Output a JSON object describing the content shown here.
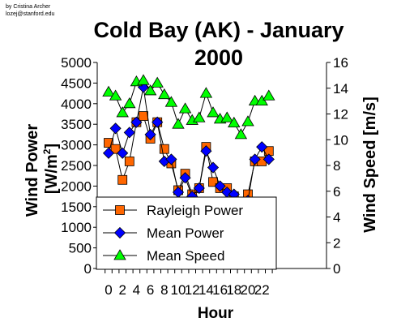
{
  "credit": {
    "line1": "by Cristina Archer",
    "line2": "lozej@stanford.edu"
  },
  "chart_data": {
    "type": "line",
    "title_line1": "Cold Bay (AK) - January",
    "title_line2": "2000",
    "xlabel": "Hour",
    "ylabel_left": "Wind Power [W/m²]",
    "ylabel_left_main": "Wind Power",
    "ylabel_left_unit_prefix": "[W/m",
    "ylabel_left_unit_sup": "2",
    "ylabel_left_unit_suffix": "]",
    "ylabel_right": "Wind Speed [m/s]",
    "ylim_left": [
      0,
      5000
    ],
    "ylim_right": [
      0,
      16
    ],
    "xlim": [
      -0.5,
      23.5
    ],
    "yticks_left": [
      "0",
      "500",
      "1000",
      "1500",
      "2000",
      "2500",
      "3000",
      "3500",
      "4000",
      "4500",
      "5000"
    ],
    "yticks_right": [
      "0",
      "2",
      "4",
      "6",
      "8",
      "10",
      "12",
      "14",
      "16"
    ],
    "xtick_labels": [
      "0",
      "2",
      "4",
      "6",
      "8",
      "10",
      "12",
      "14",
      "16",
      "18",
      "20",
      "22"
    ],
    "x": [
      0,
      1,
      2,
      3,
      4,
      5,
      6,
      7,
      8,
      9,
      10,
      11,
      12,
      13,
      14,
      15,
      16,
      17,
      18,
      19,
      20,
      21,
      22,
      23
    ],
    "series": [
      {
        "name": "Rayleigh Power",
        "axis": "left",
        "marker": "square",
        "color": "#FF6600",
        "values": [
          3050,
          2900,
          2150,
          2600,
          3550,
          3700,
          3150,
          3550,
          2900,
          2550,
          1900,
          2300,
          1800,
          1950,
          2950,
          2100,
          1950,
          1950,
          1750,
          1350,
          1800,
          2600,
          2600,
          2850
        ]
      },
      {
        "name": "Mean Power",
        "axis": "left",
        "marker": "diamond",
        "color": "#0000FF",
        "values": [
          2800,
          3400,
          2800,
          3300,
          3550,
          4400,
          3250,
          3550,
          2600,
          2650,
          1850,
          2200,
          1750,
          1950,
          2850,
          2450,
          2000,
          1850,
          1800,
          1450,
          1650,
          2650,
          2950,
          2650
        ]
      },
      {
        "name": "Mean Speed",
        "axis": "right",
        "marker": "triangle",
        "color": "#00FF00",
        "values": [
          13.7,
          13.4,
          12.1,
          12.8,
          14.5,
          14.6,
          13.8,
          14.4,
          13.5,
          12.9,
          11.2,
          12.4,
          11.5,
          11.7,
          13.6,
          12.1,
          11.6,
          11.7,
          11.3,
          10.4,
          11.4,
          13.0,
          13.0,
          13.4
        ]
      }
    ],
    "legend": {
      "placement": "bottom-left",
      "entries": [
        "Rayleigh Power",
        "Mean Power",
        "Mean Speed"
      ]
    },
    "grid": false,
    "colors": {
      "rayleigh": "#FF6600",
      "mean_power": "#0000FF",
      "mean_speed": "#00FF00",
      "line": "#000000"
    }
  }
}
